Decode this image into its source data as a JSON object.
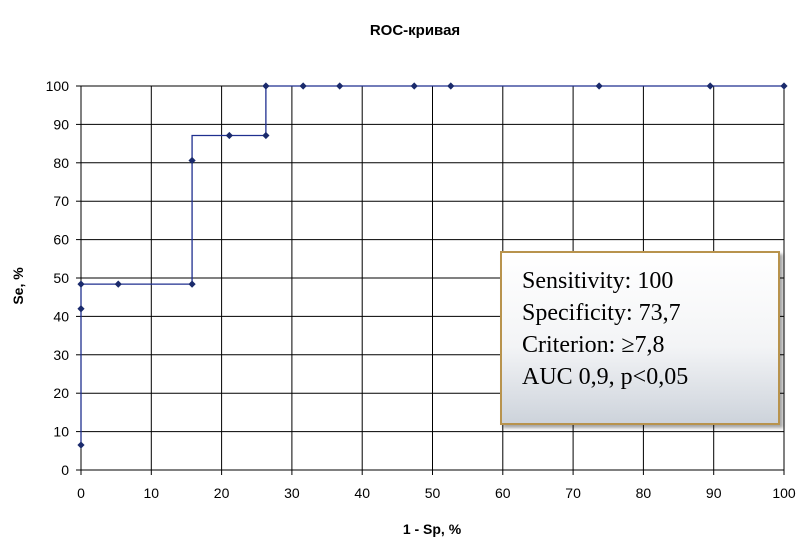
{
  "chart_data": {
    "type": "line",
    "title": "ROC-кривая",
    "xlabel": "1 - Sp, %",
    "ylabel": "Se, %",
    "xlim": [
      0,
      100
    ],
    "ylim": [
      0,
      100
    ],
    "x_ticks": [
      0,
      10,
      20,
      30,
      40,
      50,
      60,
      70,
      80,
      90,
      100
    ],
    "y_ticks": [
      0,
      10,
      20,
      30,
      40,
      50,
      60,
      70,
      80,
      90,
      100
    ],
    "grid": true,
    "legend": "none",
    "step": true,
    "series": [
      {
        "x": [
          0,
          0,
          0,
          5.3,
          15.8,
          15.8,
          21.1,
          26.3,
          26.3,
          31.6,
          36.8,
          47.4,
          52.6,
          73.7,
          89.5,
          100
        ],
        "y": [
          6.5,
          42,
          48.4,
          48.4,
          48.4,
          80.6,
          87.1,
          87.1,
          100,
          100,
          100,
          100,
          100,
          100,
          100,
          100
        ],
        "color": "#1a2a6c"
      }
    ],
    "annotation": {
      "lines": [
        "Sensitivity: 100",
        "Specificity: 73,7",
        "Criterion: ≥7,8",
        "AUC 0,9, p<0,05"
      ],
      "border_color": "#b8934d"
    }
  }
}
